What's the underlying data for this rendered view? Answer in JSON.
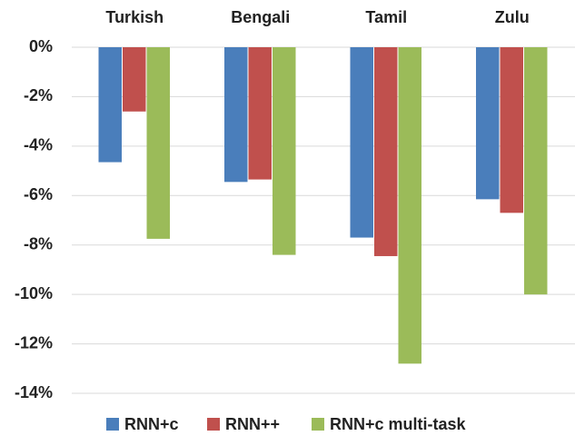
{
  "chart_data": {
    "type": "bar",
    "categories": [
      "Turkish",
      "Bengali",
      "Tamil",
      "Zulu"
    ],
    "series": [
      {
        "name": "RNN+c",
        "color": "#4a7ebb",
        "values": [
          -4.65,
          -5.45,
          -7.7,
          -6.15
        ]
      },
      {
        "name": "RNN++",
        "color": "#c0504d",
        "values": [
          -2.6,
          -5.35,
          -8.45,
          -6.7
        ]
      },
      {
        "name": "RNN+c multi-task",
        "color": "#9bbb59",
        "values": [
          -7.75,
          -8.4,
          -12.8,
          -10.0
        ]
      }
    ],
    "ylim": [
      -14,
      0
    ],
    "yticks": [
      {
        "value": 0,
        "label": "0%"
      },
      {
        "value": -2,
        "label": "-2%"
      },
      {
        "value": -4,
        "label": "-4%"
      },
      {
        "value": -6,
        "label": "-6%"
      },
      {
        "value": -8,
        "label": "-8%"
      },
      {
        "value": -10,
        "label": "-10%"
      },
      {
        "value": -12,
        "label": "-12%"
      },
      {
        "value": -14,
        "label": "-14%"
      }
    ],
    "grid": true,
    "legend": "bottom"
  }
}
